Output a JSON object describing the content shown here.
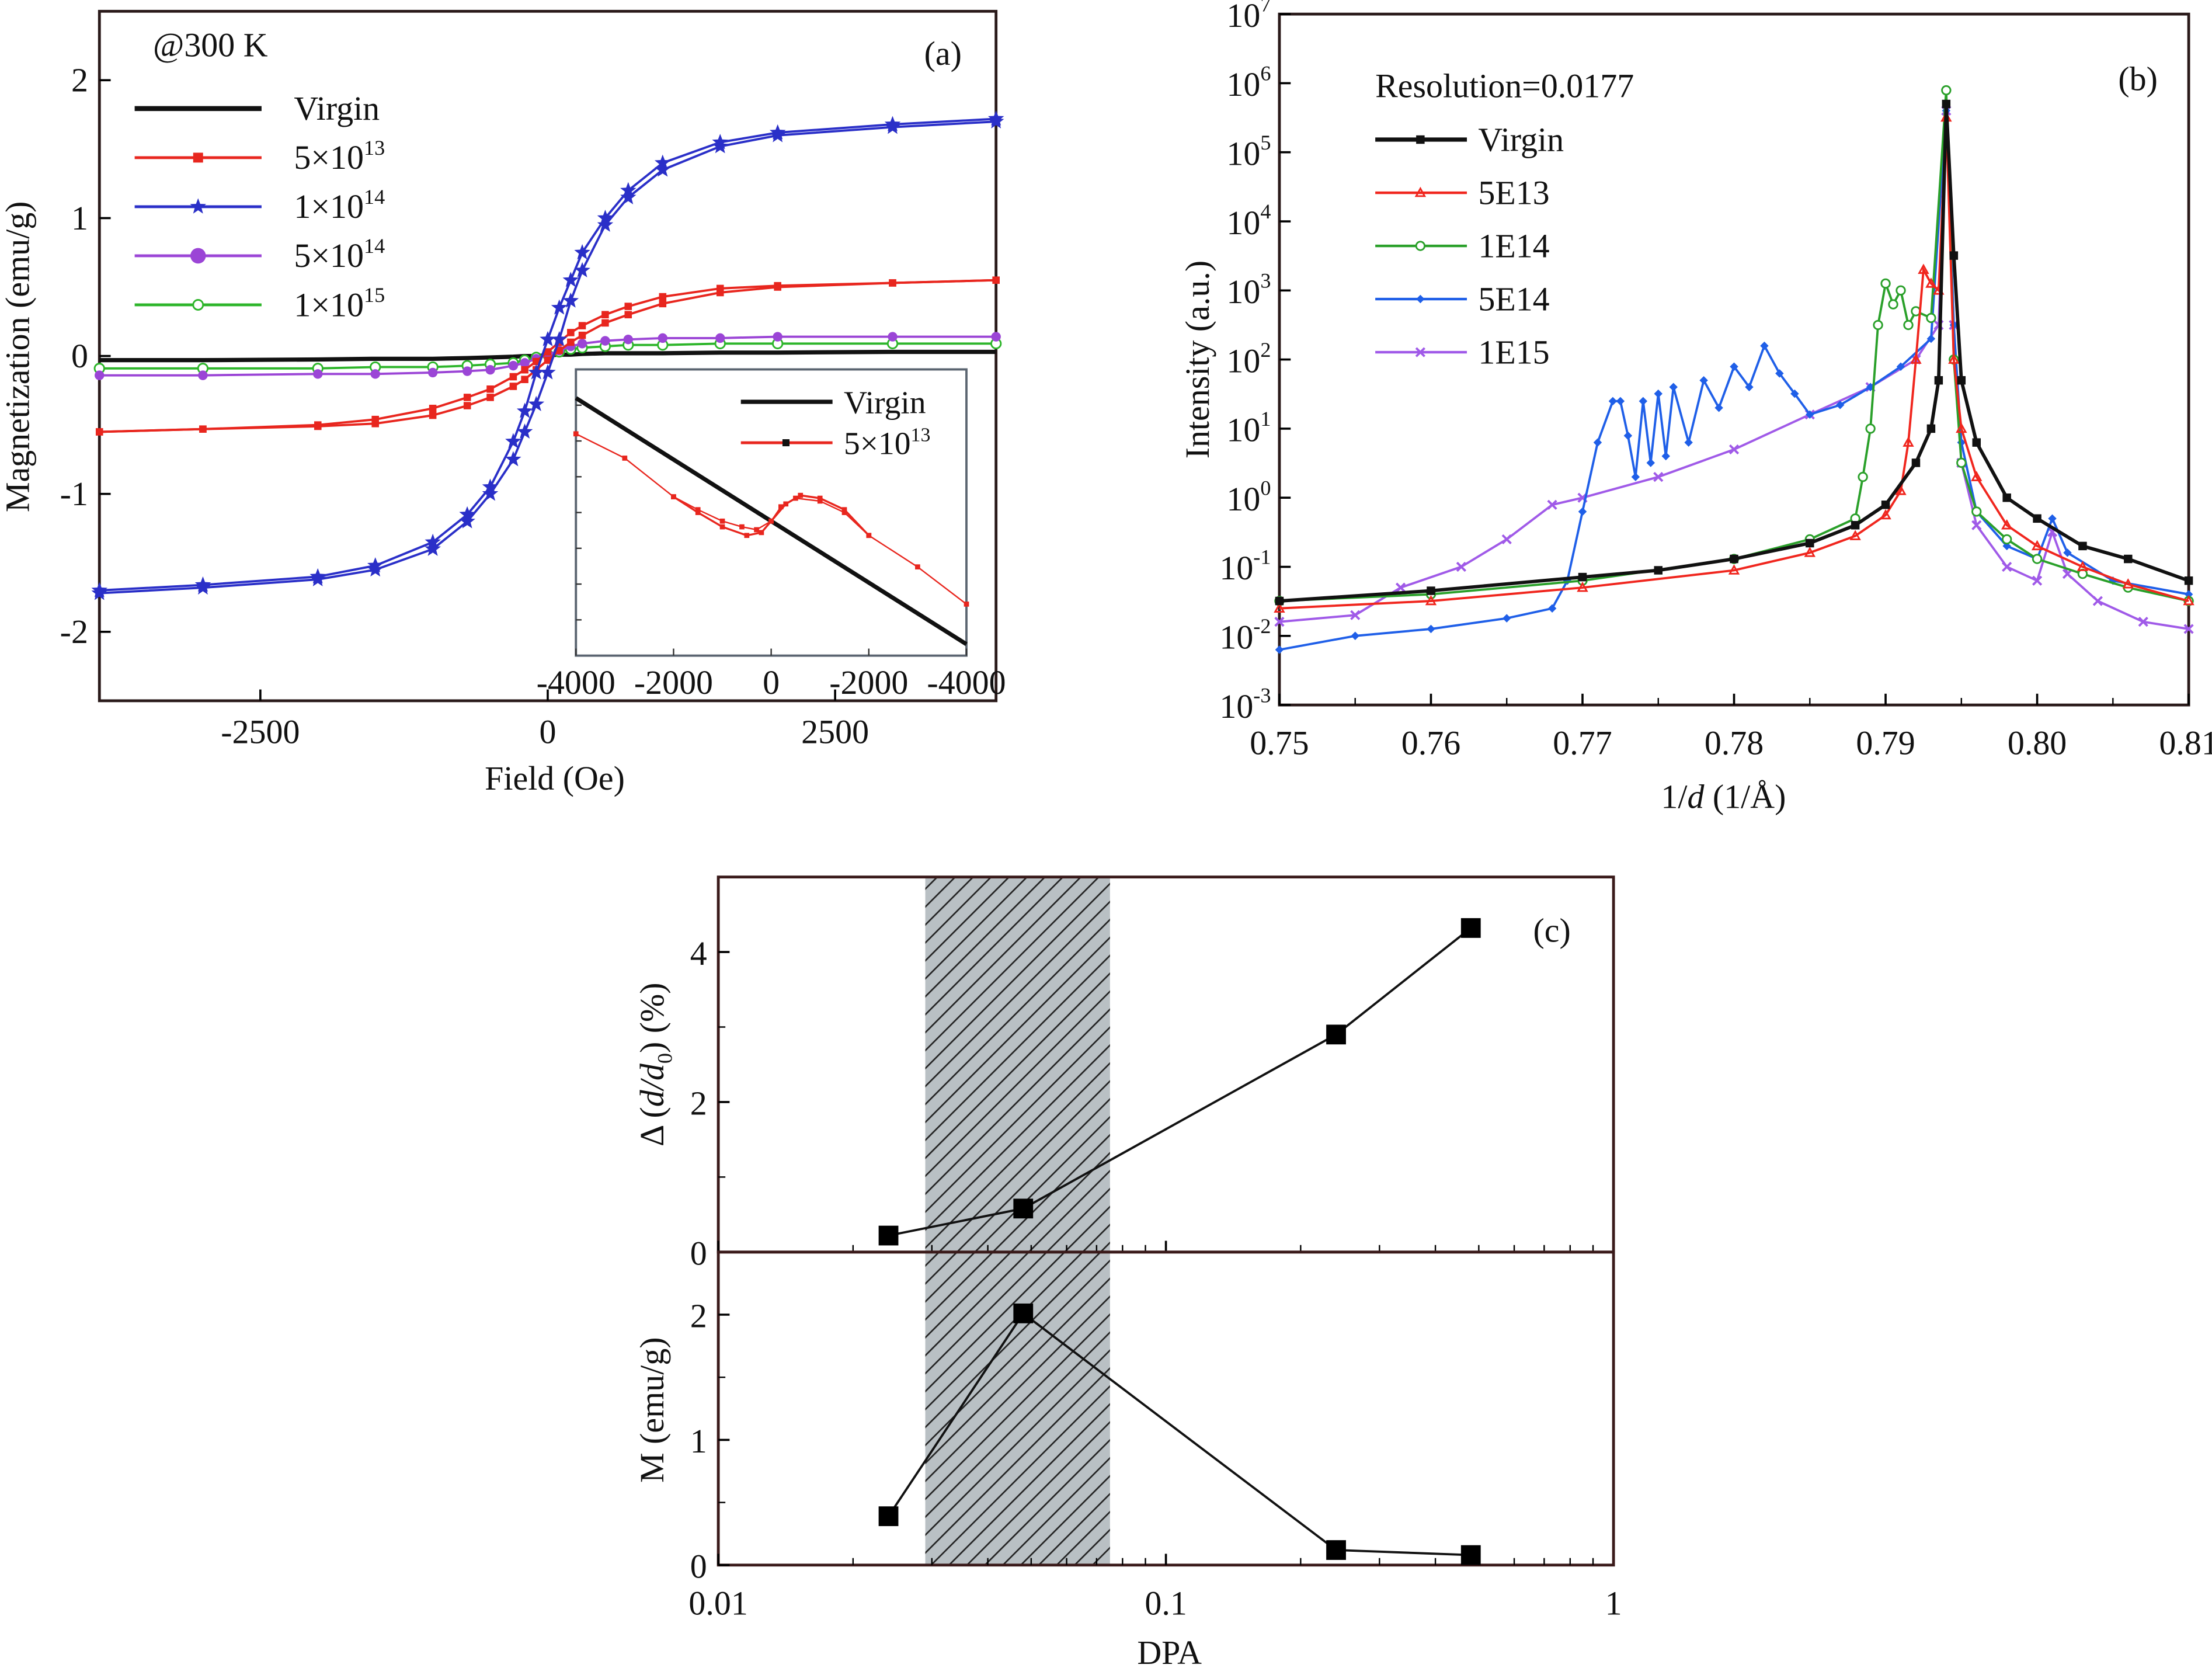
{
  "chart_data": [
    {
      "panel": "(a)",
      "type": "line",
      "annotation": "@300 K",
      "xlabel": "Field (Oe)",
      "ylabel": "Magnetization (emu/g)",
      "xlim": [
        -3900,
        3900
      ],
      "ylim": [
        -2.5,
        2.5
      ],
      "xticks": [
        "-2500",
        "0",
        "2500"
      ],
      "yticks": [
        "-2",
        "-1",
        "0",
        "1",
        "2"
      ],
      "legend": "top-left",
      "x": [
        -3900,
        -3000,
        -2000,
        -1500,
        -1000,
        -700,
        -500,
        -300,
        -200,
        -100,
        0,
        100,
        200,
        300,
        500,
        700,
        1000,
        1500,
        2000,
        3000,
        3900
      ],
      "series": [
        {
          "name_base": "Virgin",
          "name_exp": "",
          "color": "#111111",
          "marker": "none",
          "y_desc": [
            -0.03,
            -0.03,
            -0.025,
            -0.02,
            -0.02,
            -0.015,
            -0.01,
            -0.005,
            0,
            0,
            0.005,
            0.01,
            0.01,
            0.015,
            0.02,
            0.02,
            0.02,
            0.025,
            0.025,
            0.03,
            0.03
          ]
        },
        {
          "name_base": "5×10",
          "name_exp": "13",
          "color": "#e8261e",
          "marker": "square",
          "y_desc": [
            -0.55,
            -0.53,
            -0.5,
            -0.46,
            -0.38,
            -0.3,
            -0.24,
            -0.15,
            -0.1,
            -0.04,
            0.03,
            0.1,
            0.17,
            0.22,
            0.3,
            0.36,
            0.43,
            0.49,
            0.51,
            0.53,
            0.55
          ],
          "y_asc": [
            -0.55,
            -0.53,
            -0.51,
            -0.49,
            -0.43,
            -0.36,
            -0.3,
            -0.22,
            -0.17,
            -0.1,
            -0.03,
            0.04,
            0.1,
            0.15,
            0.24,
            0.3,
            0.38,
            0.46,
            0.5,
            0.53,
            0.55
          ]
        },
        {
          "name_base": "1×10",
          "name_exp": "14",
          "color": "#2a2fc8",
          "marker": "star",
          "y_desc": [
            -1.7,
            -1.66,
            -1.6,
            -1.52,
            -1.35,
            -1.15,
            -0.95,
            -0.62,
            -0.4,
            -0.12,
            0.12,
            0.35,
            0.55,
            0.75,
            1.0,
            1.2,
            1.4,
            1.55,
            1.62,
            1.68,
            1.72
          ],
          "y_asc": [
            -1.72,
            -1.68,
            -1.62,
            -1.55,
            -1.4,
            -1.2,
            -1.0,
            -0.75,
            -0.55,
            -0.35,
            -0.12,
            0.12,
            0.4,
            0.62,
            0.95,
            1.15,
            1.35,
            1.52,
            1.6,
            1.66,
            1.7
          ]
        },
        {
          "name_base": "5×10",
          "name_exp": "14",
          "color": "#9b45d6",
          "marker": "circle",
          "y_desc": [
            -0.14,
            -0.14,
            -0.13,
            -0.13,
            -0.12,
            -0.11,
            -0.1,
            -0.07,
            -0.05,
            -0.02,
            0.01,
            0.04,
            0.07,
            0.09,
            0.11,
            0.12,
            0.13,
            0.13,
            0.14,
            0.14,
            0.14
          ]
        },
        {
          "name_base": "1×10",
          "name_exp": "15",
          "color": "#2db52a",
          "marker": "open-circle",
          "y_desc": [
            -0.09,
            -0.09,
            -0.09,
            -0.08,
            -0.08,
            -0.07,
            -0.06,
            -0.05,
            -0.03,
            -0.01,
            0.01,
            0.03,
            0.05,
            0.06,
            0.07,
            0.08,
            0.08,
            0.09,
            0.09,
            0.09,
            0.09
          ]
        }
      ],
      "inset": {
        "xlim": [
          -4000,
          4000
        ],
        "ylim": [
          -1,
          1
        ],
        "xtick_labels": [
          "-4000",
          "-2000",
          "0",
          "-2000",
          "-4000"
        ],
        "series": [
          {
            "name_base": "Virgin",
            "name_exp": "",
            "color": "#111111",
            "x": [
              -4000,
              4000
            ],
            "y": [
              0.8,
              -0.92
            ]
          },
          {
            "name_base": "5×10",
            "name_exp": "13",
            "color": "#e8261e",
            "x": [
              -4000,
              -3000,
              -2000,
              -1500,
              -1000,
              -600,
              -300,
              0,
              200,
              500,
              1000,
              1500,
              2000,
              3000,
              4000
            ],
            "y": [
              0.55,
              0.38,
              0.11,
              0.02,
              -0.06,
              -0.1,
              -0.12,
              -0.06,
              0.04,
              0.1,
              0.08,
              0.0,
              -0.16,
              -0.38,
              -0.64
            ],
            "x2": [
              -2000,
              -1500,
              -1000,
              -500,
              -200,
              0,
              300,
              600,
              1000,
              1500,
              2000
            ],
            "y2": [
              0.11,
              0.0,
              -0.1,
              -0.16,
              -0.14,
              -0.06,
              0.06,
              0.12,
              0.1,
              0.02,
              -0.16
            ]
          }
        ]
      }
    },
    {
      "panel": "(b)",
      "type": "line",
      "annotation": "Resolution=0.0177",
      "xlabel": {
        "pre": "1/",
        "var": "d",
        "post": " (1/Å)"
      },
      "ylabel": "Intensity (a.u.)",
      "xlim": [
        0.75,
        0.81
      ],
      "ylim": [
        0.001,
        10000000
      ],
      "yscale": "log",
      "xticks": [
        "0.75",
        "0.76",
        "0.77",
        "0.78",
        "0.79",
        "0.80",
        "0.81"
      ],
      "yticks": [
        {
          "base": "10",
          "exp": "-3"
        },
        {
          "base": "10",
          "exp": "-2"
        },
        {
          "base": "10",
          "exp": "-1"
        },
        {
          "base": "10",
          "exp": "0"
        },
        {
          "base": "10",
          "exp": "1"
        },
        {
          "base": "10",
          "exp": "2"
        },
        {
          "base": "10",
          "exp": "3"
        },
        {
          "base": "10",
          "exp": "4"
        },
        {
          "base": "10",
          "exp": "5"
        },
        {
          "base": "10",
          "exp": "6"
        },
        {
          "base": "10",
          "exp": "7"
        }
      ],
      "legend": "top-left",
      "series": [
        {
          "name": "Virgin",
          "color": "#111111",
          "marker": "square",
          "x": [
            0.75,
            0.76,
            0.77,
            0.775,
            0.78,
            0.785,
            0.788,
            0.79,
            0.792,
            0.793,
            0.7935,
            0.794,
            0.7945,
            0.795,
            0.796,
            0.798,
            0.8,
            0.803,
            0.806,
            0.81
          ],
          "y": [
            0.032,
            0.045,
            0.071,
            0.089,
            0.13,
            0.22,
            0.4,
            0.79,
            3.2,
            10,
            50,
            500000,
            3200,
            50,
            6.3,
            1,
            0.5,
            0.2,
            0.13,
            0.063
          ]
        },
        {
          "name": "5E13",
          "color": "#f0261e",
          "marker": "triangle",
          "x": [
            0.75,
            0.76,
            0.77,
            0.78,
            0.785,
            0.788,
            0.79,
            0.791,
            0.7915,
            0.792,
            0.7925,
            0.793,
            0.7935,
            0.794,
            0.7945,
            0.795,
            0.796,
            0.798,
            0.8,
            0.803,
            0.806,
            0.81
          ],
          "y": [
            0.025,
            0.032,
            0.05,
            0.089,
            0.16,
            0.28,
            0.56,
            1.26,
            6.3,
            100,
            2000,
            1260,
            1000,
            320000,
            100,
            10,
            2,
            0.4,
            0.2,
            0.1,
            0.056,
            0.032
          ]
        },
        {
          "name": "1E14",
          "color": "#2aa02a",
          "marker": "open-circle",
          "x": [
            0.75,
            0.76,
            0.77,
            0.78,
            0.785,
            0.788,
            0.7885,
            0.789,
            0.7895,
            0.79,
            0.7905,
            0.791,
            0.7915,
            0.792,
            0.793,
            0.794,
            0.7945,
            0.795,
            0.796,
            0.798,
            0.8,
            0.803,
            0.806,
            0.81
          ],
          "y": [
            0.032,
            0.04,
            0.063,
            0.13,
            0.25,
            0.5,
            2,
            10,
            316,
            1260,
            630,
            1000,
            316,
            500,
            400,
            790000,
            100,
            3.2,
            0.63,
            0.25,
            0.13,
            0.079,
            0.05,
            0.032
          ]
        },
        {
          "name": "5E14",
          "color": "#1f5fe8",
          "marker": "diamond",
          "x": [
            0.75,
            0.755,
            0.76,
            0.765,
            0.768,
            0.769,
            0.77,
            0.771,
            0.772,
            0.7725,
            0.773,
            0.7735,
            0.774,
            0.7745,
            0.775,
            0.7755,
            0.776,
            0.777,
            0.778,
            0.779,
            0.78,
            0.781,
            0.782,
            0.783,
            0.784,
            0.785,
            0.787,
            0.789,
            0.791,
            0.793,
            0.794,
            0.7945,
            0.795,
            0.796,
            0.798,
            0.8,
            0.801,
            0.802,
            0.805,
            0.81
          ],
          "y": [
            0.0063,
            0.01,
            0.0126,
            0.018,
            0.025,
            0.063,
            0.63,
            6.3,
            25,
            25,
            7.9,
            2,
            25,
            3.2,
            32,
            4,
            40,
            6.3,
            50,
            20,
            79,
            40,
            158,
            63,
            32,
            16,
            22,
            40,
            79,
            200,
            400000,
            316,
            6.3,
            0.63,
            0.2,
            0.13,
            0.5,
            0.16,
            0.063,
            0.04
          ]
        },
        {
          "name": "1E15",
          "color": "#a05ae8",
          "marker": "cross",
          "x": [
            0.75,
            0.755,
            0.758,
            0.762,
            0.765,
            0.768,
            0.77,
            0.775,
            0.78,
            0.785,
            0.789,
            0.792,
            0.7935,
            0.794,
            0.7945,
            0.795,
            0.796,
            0.798,
            0.8,
            0.801,
            0.802,
            0.804,
            0.807,
            0.81
          ],
          "y": [
            0.016,
            0.02,
            0.05,
            0.1,
            0.25,
            0.79,
            1,
            2,
            5,
            16,
            40,
            100,
            316,
            400000,
            316,
            3.2,
            0.4,
            0.1,
            0.063,
            0.32,
            0.079,
            0.032,
            0.016,
            0.0126
          ]
        }
      ]
    },
    {
      "panel": "(c)",
      "type": "line",
      "xlabel": "DPA",
      "xscale": "log",
      "xlim": [
        0.01,
        1
      ],
      "xticks": [
        "0.01",
        "0.1",
        "1"
      ],
      "shaded_region": [
        0.029,
        0.075
      ],
      "subplots": [
        {
          "ylabel": {
            "pre": "Δ (",
            "var": "d",
            "slash": "/",
            "var2": "d",
            "sub": "0",
            "post": ") (%)"
          },
          "ylim": [
            0,
            5
          ],
          "yticks": [
            "0",
            "2",
            "4"
          ],
          "x": [
            0.024,
            0.048,
            0.24,
            0.48
          ],
          "y": [
            0.22,
            0.58,
            2.9,
            4.32
          ]
        },
        {
          "ylabel": "M (emu/g)",
          "ylim": [
            0,
            2.5
          ],
          "yticks": [
            "0",
            "1",
            "2"
          ],
          "x": [
            0.024,
            0.048,
            0.24,
            0.48
          ],
          "y": [
            0.39,
            2.01,
            0.12,
            0.08
          ]
        }
      ]
    }
  ]
}
